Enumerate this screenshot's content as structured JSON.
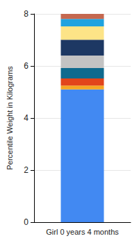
{
  "chart_data": {
    "type": "bar",
    "stacked": true,
    "grid": true,
    "ylabel": "Percentile Weight in Kilograms",
    "categories": [
      "Girl 0 years 4 months"
    ],
    "series": [
      {
        "color": "#4289f2",
        "values": [
          5.1
        ]
      },
      {
        "color": "#f5a623",
        "values": [
          0.15
        ]
      },
      {
        "color": "#e2451b",
        "values": [
          0.27
        ]
      },
      {
        "color": "#0f6a8e",
        "values": [
          0.4
        ]
      },
      {
        "color": "#c3c3c3",
        "values": [
          0.48
        ]
      },
      {
        "color": "#1d3863",
        "values": [
          0.61
        ]
      },
      {
        "color": "#fde487",
        "values": [
          0.51
        ]
      },
      {
        "color": "#1fa2df",
        "values": [
          0.29
        ]
      },
      {
        "color": "#c5684f",
        "values": [
          0.19
        ]
      }
    ],
    "ylim": [
      0,
      8
    ],
    "yticks": [
      0,
      2,
      4,
      6,
      8
    ]
  }
}
